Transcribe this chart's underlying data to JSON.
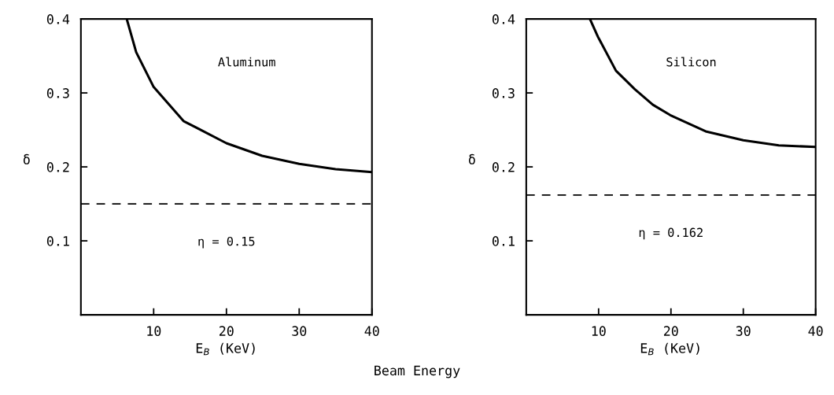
{
  "chart_data": [
    {
      "type": "line",
      "xlabel": "E$_{B}$ (KeV)",
      "ylabel": "δ",
      "annotations": [
        "Aluminum"
      ],
      "series": [
        {
          "color": "#000000",
          "x": [
            6.3,
            7.6,
            10,
            14.1,
            20,
            24.9,
            30,
            35,
            40
          ],
          "values": [
            0.4,
            0.355,
            0.308,
            0.262,
            0.232,
            0.215,
            0.204,
            0.197,
            0.193
          ]
        }
      ],
      "xlim": [
        0,
        40
      ],
      "ylim": [
        0,
        0.4
      ],
      "xticks": [
        10,
        20,
        30,
        40
      ],
      "yticks": [
        0.1,
        0.2,
        0.3,
        0.4
      ],
      "grid": false,
      "legend": false,
      "marker": "none",
      "line_style": "solid",
      "ref_lines": [
        {
          "axis": "y",
          "value": 0.15,
          "label": "η = 0.15",
          "color": "#000000",
          "line_style": "dashed"
        }
      ]
    },
    {
      "type": "line",
      "xlabel": "E$_{B}$ (KeV)",
      "ylabel": "δ",
      "annotations": [
        "Silicon",
        "Beam Energy"
      ],
      "series": [
        {
          "color": "#000000",
          "x": [
            8.8,
            9.9,
            12.4,
            15,
            17.5,
            19.9,
            24.8,
            30,
            34.9,
            40
          ],
          "values": [
            0.4,
            0.376,
            0.33,
            0.305,
            0.284,
            0.27,
            0.248,
            0.236,
            0.229,
            0.227
          ]
        }
      ],
      "xlim": [
        0,
        40
      ],
      "ylim": [
        0,
        0.4
      ],
      "xticks": [
        10,
        20,
        30,
        40
      ],
      "yticks": [
        0.1,
        0.2,
        0.3,
        0.4
      ],
      "grid": false,
      "legend": false,
      "marker": "none",
      "line_style": "solid",
      "ref_lines": [
        {
          "axis": "y",
          "value": 0.162,
          "label": "η = 0.162",
          "color": "#000000",
          "line_style": "dashed"
        }
      ]
    }
  ]
}
